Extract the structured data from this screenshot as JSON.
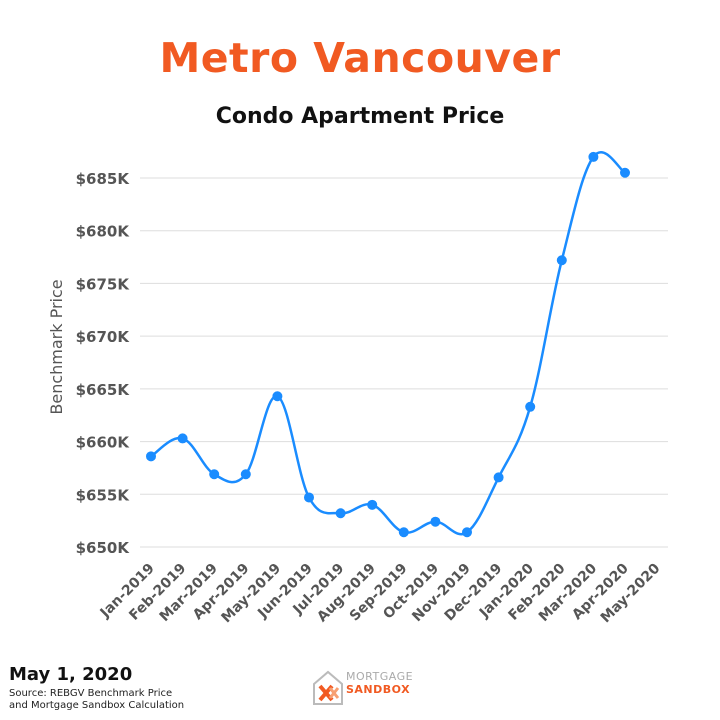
{
  "header": {
    "title": "Metro Vancouver",
    "subtitle": "Condo Apartment Price"
  },
  "footer": {
    "date": "May 1, 2020",
    "source_line1": "Source: REBGV Benchmark Price",
    "source_line2": "and Mortgage Sandbox Calculation",
    "logo_top": "MORTGAGE",
    "logo_bottom": "SANDBOX"
  },
  "colors": {
    "title": "#f15a22",
    "line": "#1a8cff",
    "grid": "#dddddd",
    "text": "#555555"
  },
  "chart_data": {
    "type": "line",
    "title": "Condo Apartment Price",
    "xlabel": "",
    "ylabel": "Benchmark Price",
    "categories": [
      "Jan-2019",
      "Feb-2019",
      "Mar-2019",
      "Apr-2019",
      "May-2019",
      "Jun-2019",
      "Jul-2019",
      "Aug-2019",
      "Sep-2019",
      "Oct-2019",
      "Nov-2019",
      "Dec-2019",
      "Jan-2020",
      "Feb-2020",
      "Mar-2020",
      "Apr-2020",
      "May-2020"
    ],
    "series": [
      {
        "values": [
          658600,
          660300,
          656900,
          656900,
          664300,
          654700,
          653200,
          654000,
          651400,
          652400,
          651400,
          656600,
          663300,
          677200,
          687000,
          685500,
          null
        ]
      }
    ],
    "yticks": [
      650000,
      655000,
      660000,
      665000,
      670000,
      675000,
      680000,
      685000
    ],
    "ytick_labels": [
      "$650K",
      "$655K",
      "$660K",
      "$665K",
      "$670K",
      "$675K",
      "$680K",
      "$685K"
    ],
    "ylim": [
      650000,
      685000
    ],
    "grid": true,
    "legend": "none"
  }
}
